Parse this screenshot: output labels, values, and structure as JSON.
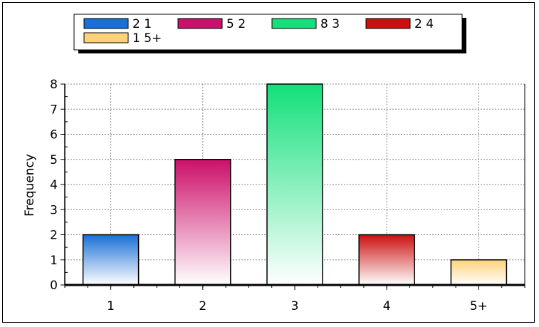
{
  "chart_data": {
    "type": "bar",
    "categories": [
      "1",
      "2",
      "3",
      "4",
      "5+"
    ],
    "values": [
      2,
      5,
      8,
      2,
      1
    ],
    "ylabel": "Frequency",
    "xlabel": "",
    "ylim": [
      0,
      8
    ],
    "yticks": [
      "0",
      "1",
      "2",
      "3",
      "4",
      "5",
      "6",
      "7",
      "8"
    ],
    "grid": true,
    "legend_position": "top",
    "legend": [
      {
        "label": "2 1",
        "color": "#1a6fd6"
      },
      {
        "label": "5 2",
        "color": "#cc0f6a"
      },
      {
        "label": "8 3",
        "color": "#12e07a"
      },
      {
        "label": "2 4",
        "color": "#cc1010"
      },
      {
        "label": "1 5+",
        "color": "#ffd27a"
      }
    ]
  }
}
